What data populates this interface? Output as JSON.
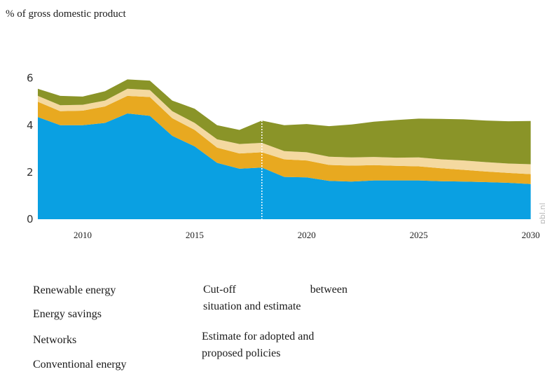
{
  "y_axis_title": "% of gross domestic product",
  "watermark": "pbl.nl",
  "legend": [
    {
      "label": "Renewable energy",
      "color": "#8a9428"
    },
    {
      "label": "Energy savings",
      "color": "#f4d9a0"
    },
    {
      "label": "Networks",
      "color": "#e8a920"
    },
    {
      "label": "Conventional energy",
      "color": "#0aa0e2"
    }
  ],
  "notes": {
    "cutoff_word1": "Cut-off",
    "cutoff_word2": "between",
    "cutoff_line2": "situation and estimate",
    "estimate_line1": "Estimate for adopted and",
    "estimate_line2": "proposed policies"
  },
  "chart_data": {
    "type": "area",
    "stacked": true,
    "x": [
      2008,
      2009,
      2010,
      2011,
      2012,
      2013,
      2014,
      2015,
      2016,
      2017,
      2018,
      2019,
      2020,
      2021,
      2022,
      2023,
      2024,
      2025,
      2026,
      2027,
      2028,
      2029,
      2030
    ],
    "x_ticks": [
      2010,
      2015,
      2020,
      2025,
      2030
    ],
    "y_ticks": [
      0,
      2,
      4,
      6
    ],
    "ylim": [
      0,
      6.2
    ],
    "xlim": [
      2008,
      2030.2
    ],
    "cutoff_year": 2018,
    "series": [
      {
        "name": "Conventional energy",
        "color": "#0aa0e2",
        "values": [
          4.35,
          4.0,
          4.0,
          4.1,
          4.5,
          4.4,
          3.55,
          3.1,
          2.4,
          2.15,
          2.2,
          1.8,
          1.78,
          1.63,
          1.6,
          1.65,
          1.65,
          1.65,
          1.62,
          1.6,
          1.58,
          1.55,
          1.5
        ]
      },
      {
        "name": "Networks",
        "color": "#e8a920",
        "values": [
          0.65,
          0.6,
          0.62,
          0.7,
          0.75,
          0.8,
          0.75,
          0.7,
          0.65,
          0.65,
          0.65,
          0.75,
          0.72,
          0.68,
          0.68,
          0.65,
          0.62,
          0.6,
          0.55,
          0.5,
          0.45,
          0.42,
          0.42
        ]
      },
      {
        "name": "Energy savings",
        "color": "#f4d9a0",
        "values": [
          0.25,
          0.25,
          0.25,
          0.25,
          0.3,
          0.3,
          0.3,
          0.3,
          0.35,
          0.4,
          0.4,
          0.35,
          0.35,
          0.35,
          0.35,
          0.35,
          0.35,
          0.38,
          0.38,
          0.4,
          0.4,
          0.4,
          0.42
        ]
      },
      {
        "name": "Renewable energy",
        "color": "#8a9428",
        "values": [
          0.3,
          0.4,
          0.35,
          0.4,
          0.4,
          0.4,
          0.45,
          0.6,
          0.6,
          0.6,
          0.95,
          1.1,
          1.2,
          1.3,
          1.4,
          1.5,
          1.6,
          1.65,
          1.72,
          1.75,
          1.77,
          1.8,
          1.84
        ]
      }
    ]
  }
}
